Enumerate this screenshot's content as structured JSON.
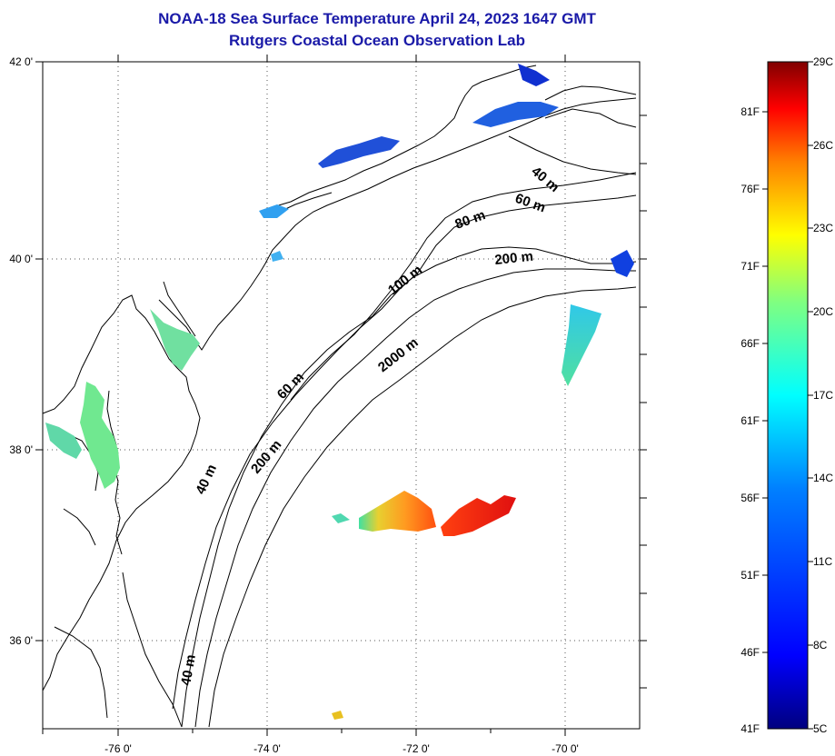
{
  "title": {
    "line1": "NOAA-18 Sea Surface Temperature April 24, 2023 1647 GMT",
    "line2": "Rutgers Coastal Ocean Observation Lab"
  },
  "map": {
    "lon_ticks": [
      "-76 0'",
      "-74 0'",
      "-72 0'",
      "-70 0'"
    ],
    "lat_ticks": [
      "42 0'",
      "40 0'",
      "38 0'",
      "36 0'"
    ],
    "lon_range": [
      -77.2,
      -68.9
    ],
    "lat_range": [
      35.0,
      42.0
    ],
    "gridlines": "dotted",
    "depth_labels": [
      "40 m",
      "60 m",
      "80 m",
      "200 m",
      "100 m",
      "2000 m",
      "60 m",
      "200 m",
      "40 m",
      "40 m"
    ]
  },
  "colorbar": {
    "fahrenheit": [
      "81F",
      "76F",
      "71F",
      "66F",
      "61F",
      "56F",
      "51F",
      "46F",
      "41F"
    ],
    "celsius": [
      "29C",
      "26C",
      "23C",
      "20C",
      "17C",
      "14C",
      "11C",
      "8C",
      "5C"
    ],
    "colors": [
      "#800000",
      "#ff0000",
      "#ff8000",
      "#ffff00",
      "#80ff80",
      "#00ffff",
      "#0080ff",
      "#0000ff",
      "#000080"
    ]
  }
}
